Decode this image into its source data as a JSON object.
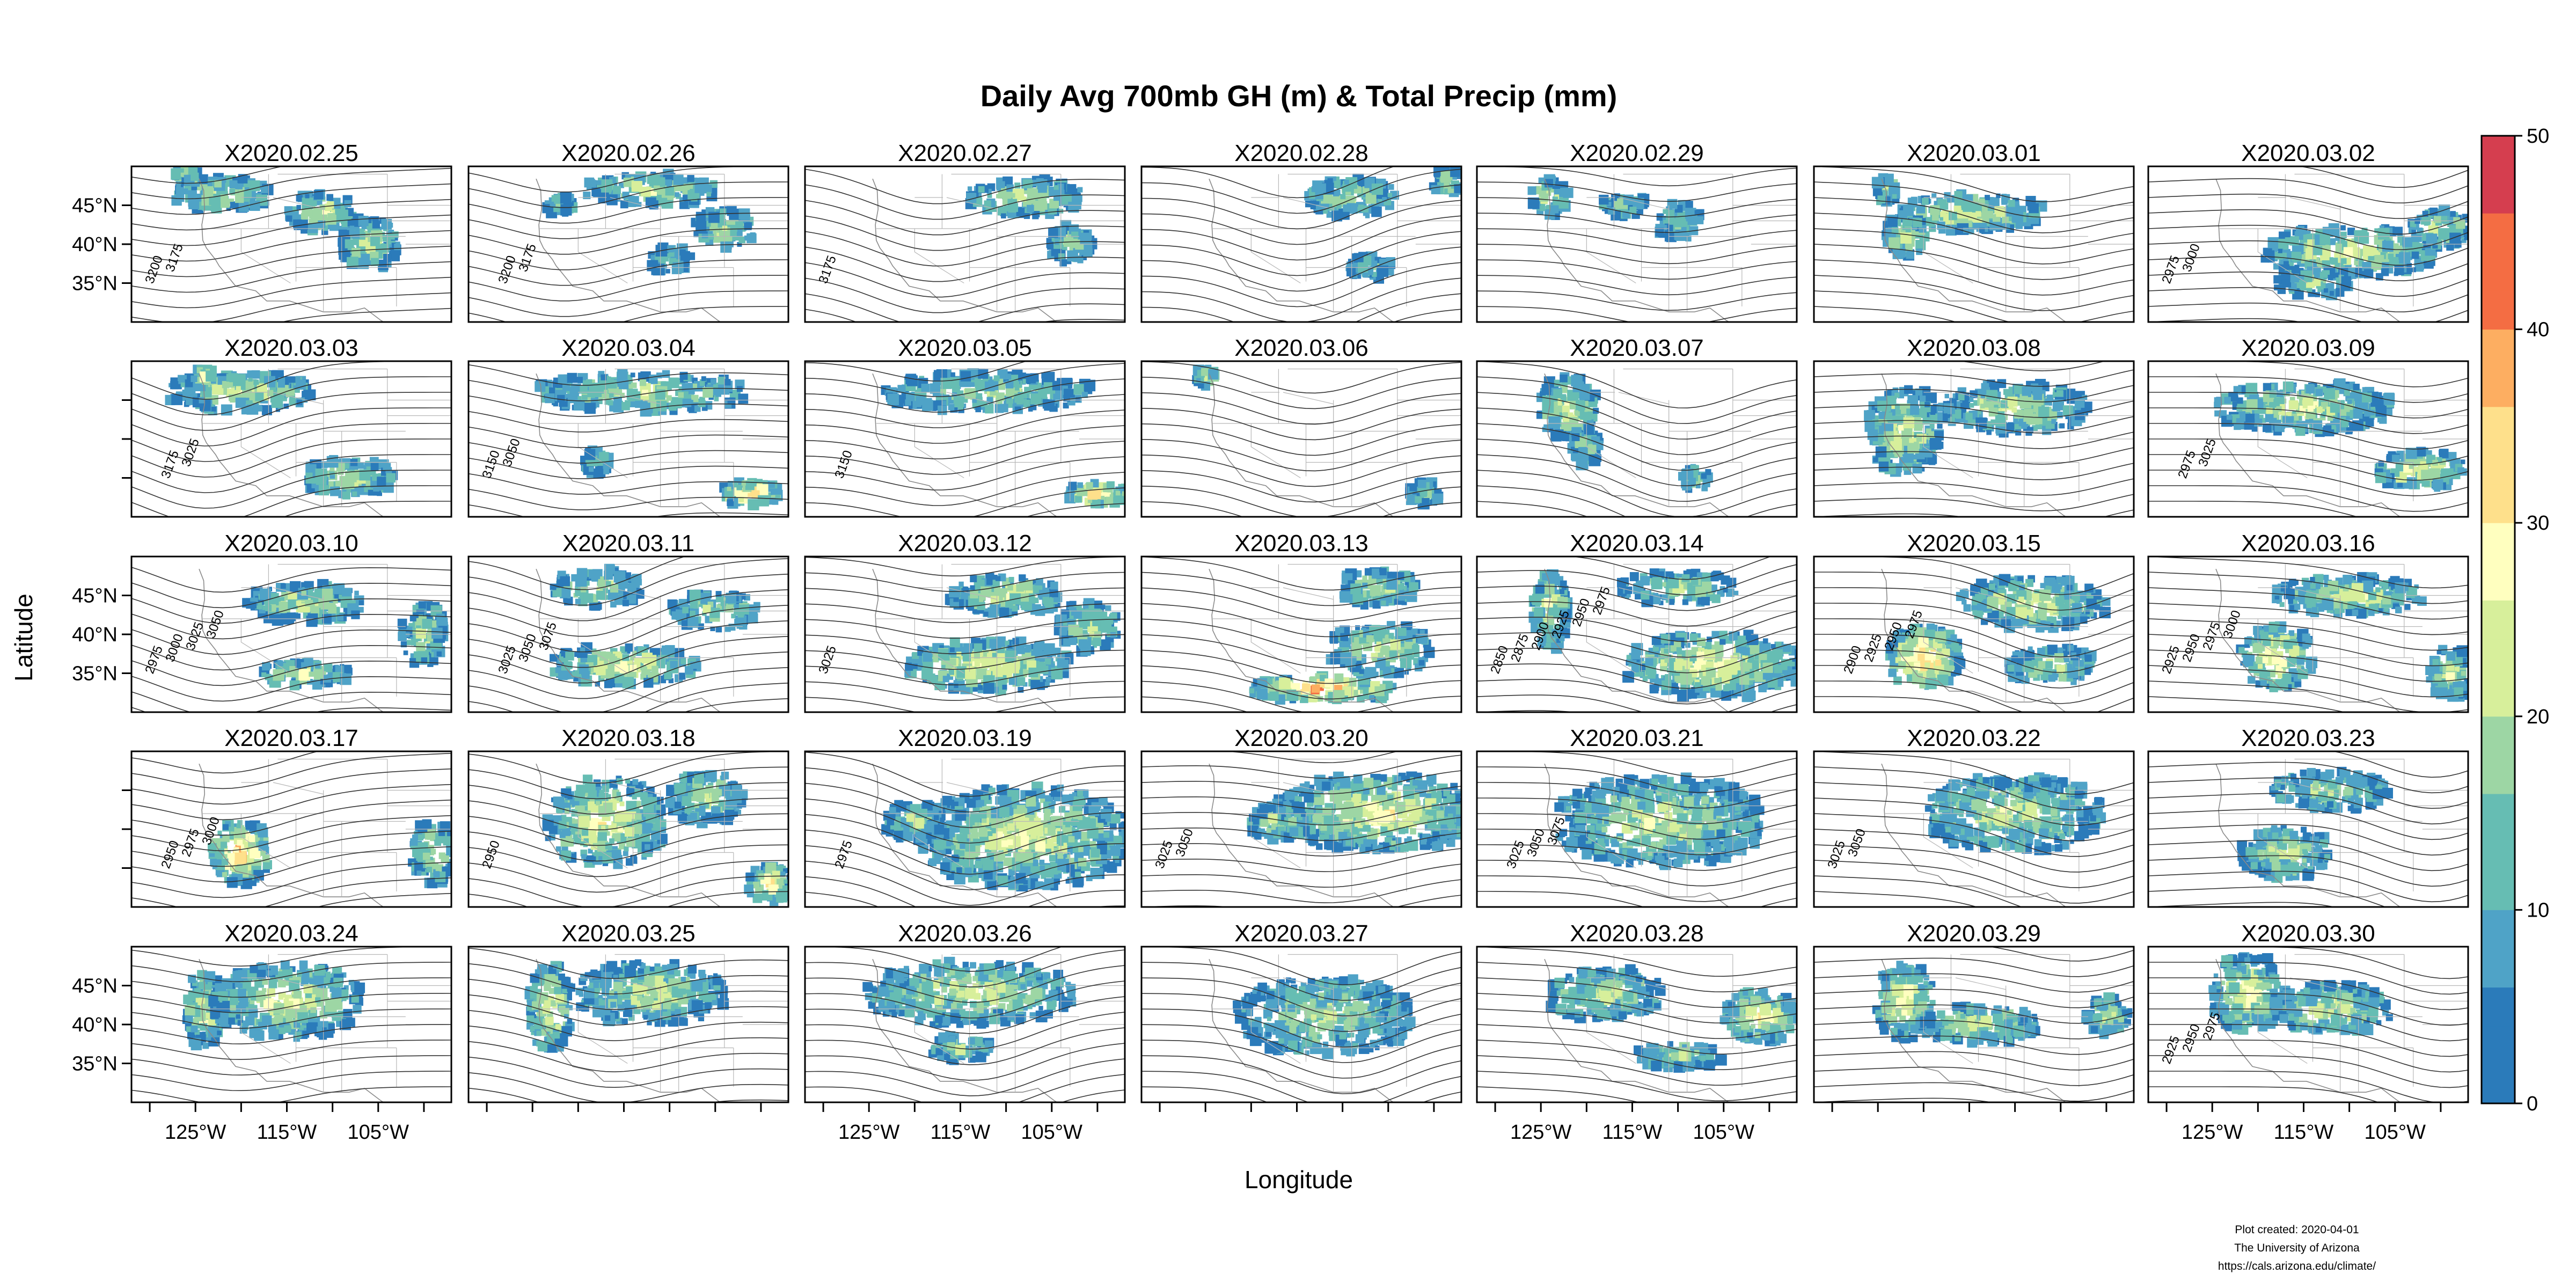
{
  "chart_data": {
    "type": "heatmap",
    "title": "Daily Avg 700mb GH (m) & Total Precip (mm)",
    "xlabel": "Longitude",
    "ylabel": "Latitude",
    "layout": {
      "rows": 5,
      "cols": 7
    },
    "x_range": [
      -132,
      -97
    ],
    "y_range": [
      30,
      50
    ],
    "x_ticks": [
      -125,
      -115,
      -105
    ],
    "x_tick_labels": [
      "125°W",
      "115°W",
      "105°W"
    ],
    "y_ticks": [
      35,
      40,
      45
    ],
    "y_tick_labels": [
      "35°N",
      "40°N",
      "45°N"
    ],
    "colorbar": {
      "range": [
        0,
        50
      ],
      "ticks": [
        0,
        10,
        20,
        30,
        40,
        50
      ],
      "tick_labels": [
        "0",
        "10",
        "20",
        "30",
        "40",
        "50"
      ],
      "colors": [
        "#2b7bba",
        "#4fa3c7",
        "#66bdb3",
        "#9dd6a4",
        "#d7ef9b",
        "#ffffbf",
        "#fee08b",
        "#fdae61",
        "#f46d43",
        "#d53e4f"
      ]
    },
    "panels": [
      {
        "date": "X2020.02.25",
        "contour_labels": [
          "3200",
          "3175"
        ],
        "precip": [
          [
            -122,
            46.5,
            7,
            2.5,
            0.45
          ],
          [
            -111,
            44,
            5,
            3,
            0.5
          ],
          [
            -106,
            40,
            4,
            4,
            0.45
          ],
          [
            -126,
            49,
            1.5,
            1.2,
            0.5
          ]
        ]
      },
      {
        "date": "X2020.02.26",
        "contour_labels": [
          "3200",
          "3175"
        ],
        "precip": [
          [
            -112,
            47,
            9,
            2.5,
            0.45
          ],
          [
            -104,
            42,
            4,
            3,
            0.4
          ],
          [
            -122,
            45,
            2,
            1.5,
            0.3
          ],
          [
            -110,
            38,
            3,
            2,
            0.3
          ]
        ]
      },
      {
        "date": "X2020.02.27",
        "contour_labels": [
          "3175"
        ],
        "precip": [
          [
            -108,
            46,
            8,
            3,
            0.45
          ],
          [
            -103,
            40,
            3,
            3,
            0.4
          ]
        ]
      },
      {
        "date": "X2020.02.28",
        "contour_labels": [],
        "precip": [
          [
            -109,
            46,
            6,
            3,
            0.4
          ],
          [
            -98.5,
            48,
            2,
            2,
            0.4
          ],
          [
            -107,
            37,
            3,
            2,
            0.3
          ]
        ]
      },
      {
        "date": "X2020.02.29",
        "contour_labels": [],
        "precip": [
          [
            -124,
            46,
            2.5,
            3,
            0.5
          ],
          [
            -116,
            45,
            3,
            2,
            0.35
          ],
          [
            -110,
            43,
            3,
            3,
            0.35
          ]
        ]
      },
      {
        "date": "X2020.03.01",
        "contour_labels": [],
        "precip": [
          [
            -115,
            44,
            10,
            3,
            0.5
          ],
          [
            -122,
            41,
            3,
            3,
            0.5
          ],
          [
            -124,
            47,
            1.5,
            2,
            0.5
          ]
        ]
      },
      {
        "date": "X2020.03.02",
        "contour_labels": [
          "2975",
          "3000"
        ],
        "precip": [
          [
            -110,
            39,
            12,
            4,
            0.5
          ],
          [
            -114,
            35,
            5,
            2,
            0.4
          ],
          [
            -100,
            42,
            4,
            3,
            0.45
          ]
        ]
      },
      {
        "date": "X2020.03.03",
        "contour_labels": [
          "3175",
          "3025"
        ],
        "precip": [
          [
            -120,
            46,
            10,
            3,
            0.45
          ],
          [
            -108,
            35,
            6,
            3,
            0.45
          ],
          [
            -124,
            48,
            1.5,
            1.5,
            0.6
          ]
        ]
      },
      {
        "date": "X2020.03.04",
        "contour_labels": [
          "3150",
          "3050"
        ],
        "precip": [
          [
            -113,
            46,
            14,
            3,
            0.45
          ],
          [
            -101,
            33,
            4,
            2,
            0.85
          ],
          [
            -118,
            37,
            2,
            2,
            0.3
          ]
        ]
      },
      {
        "date": "X2020.03.05",
        "contour_labels": [
          "3150"
        ],
        "precip": [
          [
            -112,
            46,
            14,
            3,
            0.4
          ],
          [
            -100,
            33,
            4,
            2,
            0.75
          ]
        ]
      },
      {
        "date": "X2020.03.06",
        "contour_labels": [],
        "precip": [
          [
            -125,
            48,
            1.5,
            1.5,
            0.55
          ],
          [
            -101,
            33,
            2,
            2,
            0.35
          ]
        ]
      },
      {
        "date": "X2020.03.07",
        "contour_labels": [],
        "precip": [
          [
            -122,
            44,
            4,
            5,
            0.5
          ],
          [
            -120,
            39,
            2,
            3,
            0.35
          ],
          [
            -108,
            35,
            2,
            2,
            0.3
          ]
        ]
      },
      {
        "date": "X2020.03.08",
        "contour_labels": [],
        "precip": [
          [
            -122,
            41,
            5,
            7,
            0.5
          ],
          [
            -110,
            44,
            10,
            4,
            0.45
          ]
        ]
      },
      {
        "date": "X2020.03.09",
        "contour_labels": [
          "2975",
          "3025"
        ],
        "precip": [
          [
            -115,
            44,
            12,
            4,
            0.45
          ],
          [
            -102,
            36,
            6,
            3,
            0.55
          ]
        ]
      },
      {
        "date": "X2020.03.10",
        "contour_labels": [
          "2975",
          "3000",
          "3025",
          "3050"
        ],
        "precip": [
          [
            -113,
            44,
            8,
            3,
            0.45
          ],
          [
            -113,
            35,
            6,
            2,
            0.45
          ],
          [
            -100,
            40,
            3,
            5,
            0.4
          ]
        ]
      },
      {
        "date": "X2020.03.11",
        "contour_labels": [
          "3025",
          "3050",
          "3075"
        ],
        "precip": [
          [
            -115,
            36,
            10,
            3,
            0.55
          ],
          [
            -118,
            46,
            6,
            3,
            0.45
          ],
          [
            -105,
            43,
            6,
            3,
            0.4
          ]
        ]
      },
      {
        "date": "X2020.03.12",
        "contour_labels": [
          "3025"
        ],
        "precip": [
          [
            -112,
            36,
            11,
            4,
            0.55
          ],
          [
            -110,
            45,
            8,
            3,
            0.45
          ],
          [
            -101,
            41,
            4,
            4,
            0.45
          ]
        ]
      },
      {
        "date": "X2020.03.13",
        "contour_labels": [],
        "precip": [
          [
            -112,
            33,
            10,
            2,
            0.8
          ],
          [
            -106,
            38,
            7,
            4,
            0.45
          ],
          [
            -106,
            46,
            5,
            3,
            0.4
          ]
        ]
      },
      {
        "date": "X2020.03.14",
        "contour_labels": [
          "2850",
          "2875",
          "2900",
          "2925",
          "2950",
          "2975"
        ],
        "precip": [
          [
            -124,
            43,
            2.5,
            6,
            0.5
          ],
          [
            -106,
            36,
            12,
            5,
            0.55
          ],
          [
            -110,
            46,
            8,
            2.5,
            0.45
          ]
        ]
      },
      {
        "date": "X2020.03.15",
        "contour_labels": [
          "2900",
          "2925",
          "2950",
          "2975"
        ],
        "precip": [
          [
            -120,
            37,
            5,
            5,
            0.75
          ],
          [
            -108,
            44,
            10,
            4,
            0.5
          ],
          [
            -106,
            36,
            6,
            3,
            0.4
          ]
        ]
      },
      {
        "date": "X2020.03.16",
        "contour_labels": [
          "2925",
          "2950",
          "2975",
          "3000"
        ],
        "precip": [
          [
            -118,
            37,
            5,
            5,
            0.6
          ],
          [
            -110,
            45,
            10,
            3,
            0.5
          ],
          [
            -99,
            35,
            3,
            4,
            0.5
          ]
        ]
      },
      {
        "date": "X2020.03.17",
        "contour_labels": [
          "2950",
          "2975",
          "3000"
        ],
        "precip": [
          [
            -120,
            37,
            4,
            5,
            0.75
          ],
          [
            -99,
            37,
            3,
            5,
            0.45
          ]
        ]
      },
      {
        "date": "X2020.03.18",
        "contour_labels": [
          "2950"
        ],
        "precip": [
          [
            -117,
            41,
            8,
            7,
            0.55
          ],
          [
            -106,
            44,
            5,
            4,
            0.45
          ],
          [
            -99,
            33,
            3,
            3,
            0.65
          ]
        ]
      },
      {
        "date": "X2020.03.19",
        "contour_labels": [
          "2975"
        ],
        "precip": [
          [
            -108,
            39,
            14,
            8,
            0.5
          ],
          [
            -120,
            41,
            4,
            3,
            0.4
          ]
        ]
      },
      {
        "date": "X2020.03.20",
        "contour_labels": [
          "3025",
          "3050"
        ],
        "precip": [
          [
            -106,
            42,
            14,
            6,
            0.55
          ],
          [
            -117,
            41,
            4,
            3,
            0.4
          ]
        ]
      },
      {
        "date": "X2020.03.21",
        "contour_labels": [
          "3025",
          "3050",
          "3075"
        ],
        "precip": [
          [
            -112,
            41,
            14,
            7,
            0.45
          ]
        ]
      },
      {
        "date": "X2020.03.22",
        "contour_labels": [
          "3025",
          "3050"
        ],
        "precip": [
          [
            -110,
            42,
            12,
            6,
            0.45
          ]
        ]
      },
      {
        "date": "X2020.03.23",
        "contour_labels": [],
        "precip": [
          [
            -117,
            37,
            6,
            4,
            0.5
          ],
          [
            -112,
            45,
            8,
            3,
            0.45
          ]
        ]
      },
      {
        "date": "X2020.03.24",
        "contour_labels": [],
        "precip": [
          [
            -124,
            42,
            2.5,
            6,
            0.55
          ],
          [
            -115,
            43,
            10,
            6,
            0.5
          ]
        ]
      },
      {
        "date": "X2020.03.25",
        "contour_labels": [],
        "precip": [
          [
            -123,
            42,
            3,
            7,
            0.55
          ],
          [
            -112,
            44,
            10,
            5,
            0.45
          ]
        ]
      },
      {
        "date": "X2020.03.26",
        "contour_labels": [],
        "precip": [
          [
            -114,
            44,
            14,
            5,
            0.45
          ],
          [
            -115,
            37,
            4,
            2,
            0.4
          ]
        ]
      },
      {
        "date": "X2020.03.27",
        "contour_labels": [],
        "precip": [
          [
            -112,
            41,
            12,
            6,
            0.4
          ]
        ]
      },
      {
        "date": "X2020.03.28",
        "contour_labels": [],
        "precip": [
          [
            -118,
            44,
            8,
            4,
            0.45
          ],
          [
            -101,
            41,
            5,
            4,
            0.6
          ],
          [
            -110,
            36,
            6,
            2,
            0.4
          ]
        ]
      },
      {
        "date": "X2020.03.29",
        "contour_labels": [],
        "precip": [
          [
            -122,
            43,
            4,
            6,
            0.6
          ],
          [
            -114,
            40,
            8,
            3,
            0.45
          ],
          [
            -100,
            41,
            3,
            3,
            0.45
          ]
        ]
      },
      {
        "date": "X2020.03.30",
        "contour_labels": [
          "2925",
          "2950",
          "2975"
        ],
        "precip": [
          [
            -121,
            44,
            5,
            6,
            0.55
          ],
          [
            -112,
            42,
            8,
            4,
            0.45
          ]
        ]
      }
    ]
  },
  "credit": {
    "line1": "Plot created: 2020-04-01",
    "line2": "The University of Arizona",
    "line3": "https://cals.arizona.edu/climate/"
  }
}
